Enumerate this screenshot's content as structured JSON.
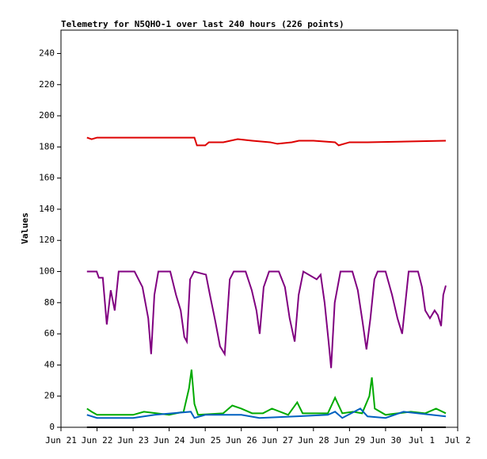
{
  "chart_data": {
    "type": "line",
    "title": "Telemetry for N5QHO-1 over last 240 hours (226 points)",
    "y_label": "Values",
    "xlim": [
      0,
      11
    ],
    "ylim": [
      0,
      255
    ],
    "xticks": [
      {
        "value": 0,
        "label": "Jun 21"
      },
      {
        "value": 1,
        "label": "Jun 22"
      },
      {
        "value": 2,
        "label": "Jun 23"
      },
      {
        "value": 3,
        "label": "Jun 24"
      },
      {
        "value": 4,
        "label": "Jun 25"
      },
      {
        "value": 5,
        "label": "Jun 26"
      },
      {
        "value": 6,
        "label": "Jun 27"
      },
      {
        "value": 7,
        "label": "Jun 28"
      },
      {
        "value": 8,
        "label": "Jun 29"
      },
      {
        "value": 9,
        "label": "Jun 30"
      },
      {
        "value": 10,
        "label": "Jul 1"
      },
      {
        "value": 11,
        "label": "Jul 2"
      }
    ],
    "yticks": [
      0,
      20,
      40,
      60,
      80,
      100,
      120,
      140,
      160,
      180,
      200,
      220,
      240
    ],
    "series": [
      {
        "color": "#dd0000",
        "x": [
          0.72,
          0.85,
          1.0,
          3.7,
          3.77,
          4.0,
          4.1,
          4.5,
          4.9,
          5.3,
          5.8,
          6.0,
          6.4,
          6.6,
          7.0,
          7.6,
          7.7,
          8.0,
          8.5,
          10.67
        ],
        "values": [
          186,
          185,
          186,
          186,
          181,
          181,
          183,
          183,
          185,
          184,
          183,
          182,
          183,
          184,
          184,
          183,
          181,
          183,
          183,
          184
        ]
      },
      {
        "color": "#800080",
        "x": [
          0.72,
          0.99,
          1.05,
          1.16,
          1.27,
          1.38,
          1.49,
          1.6,
          2.04,
          2.26,
          2.42,
          2.5,
          2.59,
          2.7,
          3.03,
          3.19,
          3.32,
          3.42,
          3.49,
          3.58,
          3.69,
          4.02,
          4.13,
          4.28,
          4.41,
          4.54,
          4.68,
          4.79,
          5.12,
          5.29,
          5.42,
          5.51,
          5.62,
          5.77,
          6.04,
          6.21,
          6.34,
          6.48,
          6.59,
          6.72,
          7.09,
          7.2,
          7.31,
          7.42,
          7.49,
          7.59,
          7.75,
          8.08,
          8.23,
          8.36,
          8.47,
          8.58,
          8.69,
          8.78,
          9.0,
          9.18,
          9.33,
          9.46,
          9.55,
          9.64,
          9.9,
          10.01,
          10.1,
          10.23,
          10.36,
          10.45,
          10.54,
          10.6,
          10.67
        ],
        "values": [
          100,
          100,
          96,
          96,
          66,
          88,
          75,
          100,
          100,
          90,
          70,
          47,
          85,
          100,
          100,
          85,
          75,
          58,
          55,
          95,
          100,
          98,
          85,
          68,
          52,
          47,
          95,
          100,
          100,
          88,
          75,
          60,
          90,
          100,
          100,
          90,
          70,
          55,
          85,
          100,
          95,
          98,
          80,
          55,
          38,
          80,
          100,
          100,
          88,
          68,
          50,
          70,
          95,
          100,
          100,
          85,
          70,
          60,
          80,
          100,
          100,
          90,
          75,
          70,
          75,
          72,
          65,
          85,
          91
        ]
      },
      {
        "color": "#00aa00",
        "x": [
          0.72,
          0.85,
          1.0,
          2.0,
          2.3,
          3.0,
          3.4,
          3.55,
          3.62,
          3.7,
          3.8,
          4.5,
          4.75,
          5.0,
          5.3,
          5.6,
          5.85,
          6.3,
          6.55,
          6.7,
          7.4,
          7.6,
          7.8,
          8.1,
          8.35,
          8.55,
          8.62,
          8.7,
          9.0,
          9.7,
          10.1,
          10.4,
          10.67
        ],
        "values": [
          12,
          10,
          8,
          8,
          10,
          8,
          10,
          25,
          37,
          15,
          8,
          9,
          14,
          12,
          9,
          9,
          12,
          8,
          16,
          9,
          9,
          19,
          9,
          10,
          9,
          20,
          32,
          12,
          8,
          10,
          9,
          12,
          9
        ]
      },
      {
        "color": "#0060c0",
        "x": [
          0.72,
          1.0,
          2.0,
          2.6,
          3.6,
          3.7,
          4.0,
          5.0,
          5.5,
          6.5,
          7.4,
          7.6,
          7.8,
          8.3,
          8.5,
          9.0,
          9.5,
          10.67
        ],
        "values": [
          8,
          6,
          6,
          8,
          10,
          6,
          8,
          8,
          6,
          7,
          8,
          10,
          6,
          12,
          7,
          6,
          10,
          7
        ]
      },
      {
        "color": "#000000",
        "x": [
          0.72,
          10.67
        ],
        "values": [
          0,
          0
        ]
      }
    ]
  }
}
